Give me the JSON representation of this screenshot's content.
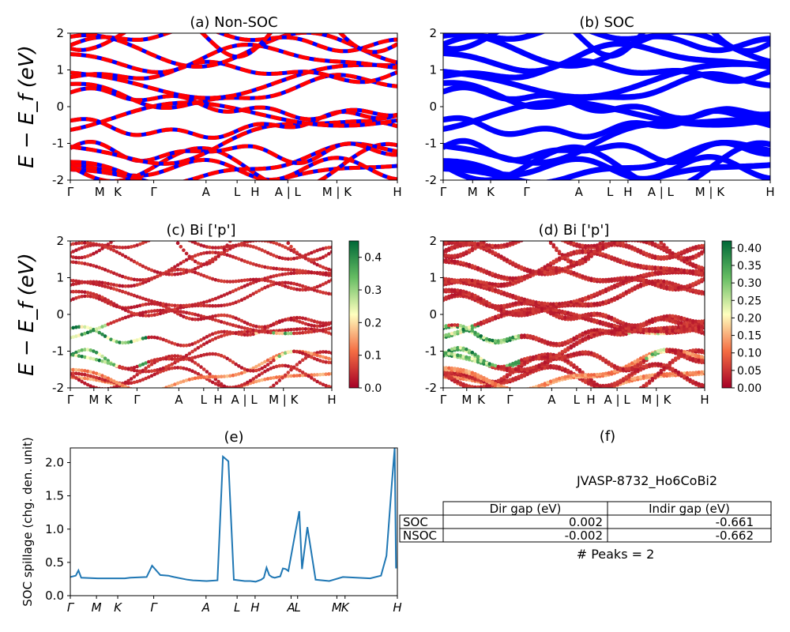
{
  "chart_data": [
    {
      "id": "a",
      "type": "line",
      "title": "(a) Non-SOC",
      "ylabel": "E − E_f (eV)",
      "ylim": [
        -2,
        2
      ],
      "yticks": [
        "-2",
        "-1",
        "0",
        "1",
        "2"
      ],
      "xticks": [
        "Γ",
        "M",
        "K",
        "Γ",
        "A",
        "L",
        "H",
        "A | L",
        "M | K",
        "H"
      ],
      "series_colors": [
        "#ff0000",
        "#0000ff"
      ]
    },
    {
      "id": "b",
      "type": "line",
      "title": "(b) SOC",
      "ylim": [
        -2,
        2
      ],
      "yticks": [
        "-2",
        "-1",
        "0",
        "1",
        "2"
      ],
      "xticks": [
        "Γ",
        "M",
        "K",
        "Γ",
        "A",
        "L",
        "H",
        "A | L",
        "M | K",
        "H"
      ],
      "series_colors": [
        "#0000ff"
      ]
    },
    {
      "id": "c",
      "type": "scatter",
      "title": "(c)  Bi ['p']",
      "ylabel": "E − E_f (eV)",
      "ylim": [
        -2,
        2
      ],
      "yticks": [
        "-2",
        "-1",
        "0",
        "1",
        "2"
      ],
      "xticks": [
        "Γ",
        "M",
        "K",
        "Γ",
        "A",
        "L",
        "H",
        "A | L",
        "M | K",
        "H"
      ],
      "colorbar": {
        "range": [
          0.0,
          0.45
        ],
        "ticks": [
          "0.0",
          "0.1",
          "0.2",
          "0.3",
          "0.4"
        ]
      }
    },
    {
      "id": "d",
      "type": "scatter",
      "title": "(d) Bi ['p']",
      "ylim": [
        -2,
        2
      ],
      "yticks": [
        "-2",
        "-1",
        "0",
        "1",
        "2"
      ],
      "xticks": [
        "Γ",
        "M",
        "K",
        "Γ",
        "A",
        "L",
        "H",
        "A | L",
        "M | K",
        "H"
      ],
      "colorbar": {
        "range": [
          0.0,
          0.42
        ],
        "ticks": [
          "0.00",
          "0.05",
          "0.10",
          "0.15",
          "0.20",
          "0.25",
          "0.30",
          "0.35",
          "0.40"
        ]
      }
    },
    {
      "id": "e",
      "type": "line",
      "title": "(e)",
      "ylabel": "SOC spillage (chg. den. unit)",
      "ylim": [
        0,
        2.22
      ],
      "yticks": [
        "0.0",
        "0.5",
        "1.0",
        "1.5",
        "2.0"
      ],
      "xticks": [
        "Γ",
        "M",
        "K",
        "Γ",
        "A",
        "L",
        "H",
        "A",
        "L",
        "M",
        "K",
        "H"
      ],
      "color": "#1f77b4",
      "x": [
        0,
        2,
        3,
        4,
        10,
        20,
        22,
        28,
        30,
        33,
        36,
        37,
        38,
        43,
        45,
        50,
        54,
        56,
        58,
        60,
        64,
        66,
        68,
        70,
        71,
        72,
        73,
        74,
        75,
        76,
        77,
        78,
        79,
        80,
        84,
        85,
        87,
        90,
        95,
        100,
        110,
        114,
        116,
        118,
        119,
        119.5
      ],
      "values": [
        0.28,
        0.3,
        0.38,
        0.27,
        0.26,
        0.26,
        0.27,
        0.28,
        0.45,
        0.31,
        0.3,
        0.29,
        0.28,
        0.24,
        0.23,
        0.22,
        0.23,
        2.09,
        2.02,
        0.24,
        0.22,
        0.22,
        0.21,
        0.24,
        0.27,
        0.42,
        0.31,
        0.28,
        0.27,
        0.28,
        0.29,
        0.41,
        0.4,
        0.37,
        1.27,
        0.4,
        1.03,
        0.24,
        0.22,
        0.28,
        0.26,
        0.3,
        0.6,
        1.7,
        2.22,
        0.41
      ],
      "xlim": [
        0,
        120
      ]
    }
  ],
  "panel_f": {
    "title": "(f)",
    "subtitle": "JVASP-8732_Ho6CoBi2",
    "table": {
      "headers": [
        "Dir gap (eV)",
        "Indir gap (eV)"
      ],
      "rows": [
        {
          "label": "SOC",
          "dir": "0.002",
          "indir": "-0.661"
        },
        {
          "label": "NSOC",
          "dir": "-0.002",
          "indir": "-0.662"
        }
      ]
    },
    "peaks": "# Peaks = 2"
  }
}
